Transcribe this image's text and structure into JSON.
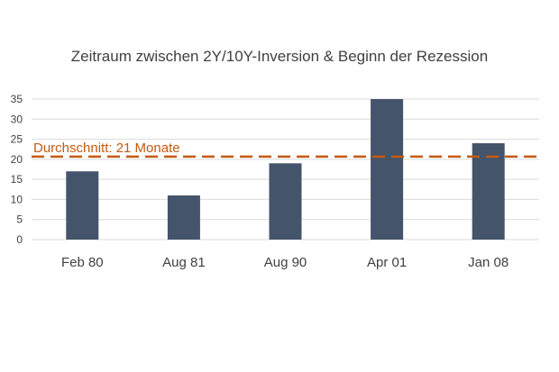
{
  "chart_data": {
    "type": "bar",
    "title": "Zeitraum zwischen 2Y/10Y-Inversion & Beginn der Rezession",
    "categories": [
      "Feb 80",
      "Aug 81",
      "Aug 90",
      "Apr 01",
      "Jan 08"
    ],
    "values": [
      17,
      11,
      19,
      35,
      24
    ],
    "xlabel": "",
    "ylabel": "",
    "ylim": [
      0,
      35
    ],
    "yticks": [
      0,
      5,
      10,
      15,
      20,
      25,
      30,
      35
    ],
    "grid": true,
    "legend": "none",
    "reference_line": {
      "value": 21,
      "label": "Durchschnitt: 21 Monate",
      "style": "dashed"
    },
    "colors": {
      "bar": "#44546a",
      "reference": "#c55a11",
      "grid": "#d9d9d9",
      "text": "#404040"
    }
  }
}
